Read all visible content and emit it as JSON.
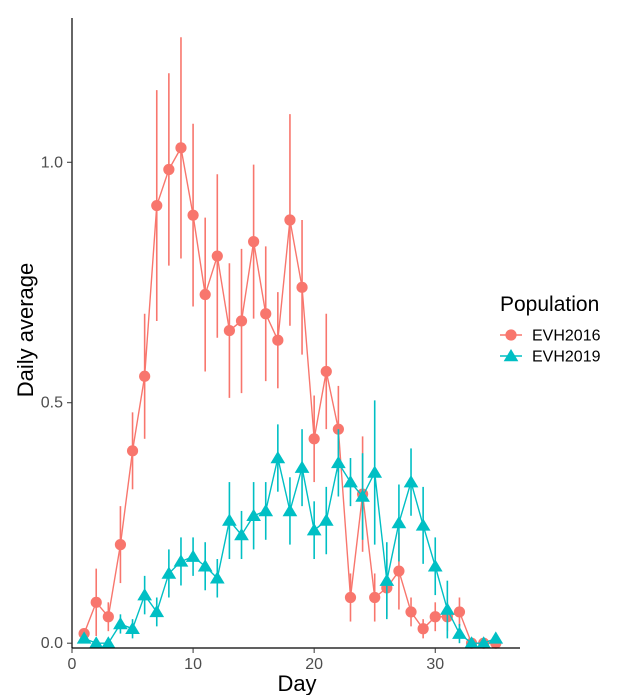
{
  "chart_data": {
    "type": "scatter",
    "title": "",
    "xlabel": "Day",
    "ylabel": "Daily average",
    "xlim": [
      0,
      37
    ],
    "ylim": [
      -0.01,
      1.3
    ],
    "xticks": [
      0,
      10,
      20,
      30
    ],
    "yticks": [
      0.0,
      0.5,
      1.0
    ],
    "ytick_labels": [
      "0.0",
      "0.5",
      "1.0"
    ],
    "grid": false,
    "legend": {
      "title": "Population",
      "placement": "right"
    },
    "series": [
      {
        "name": "EVH2016",
        "color": "#F8766D",
        "marker": "circle",
        "x": [
          1,
          2,
          3,
          4,
          5,
          6,
          7,
          8,
          9,
          10,
          11,
          12,
          13,
          14,
          15,
          16,
          17,
          18,
          19,
          20,
          21,
          22,
          23,
          24,
          25,
          26,
          27,
          28,
          29,
          30,
          31,
          32,
          33,
          34,
          35
        ],
        "y": [
          0.02,
          0.085,
          0.055,
          0.205,
          0.4,
          0.555,
          0.91,
          0.985,
          1.03,
          0.89,
          0.725,
          0.805,
          0.65,
          0.67,
          0.835,
          0.685,
          0.63,
          0.88,
          0.74,
          0.425,
          0.565,
          0.445,
          0.095,
          0.31,
          0.095,
          0.115,
          0.15,
          0.065,
          0.03,
          0.055,
          0.055,
          0.065,
          0.0,
          0.0,
          0.0
        ],
        "err": [
          0.01,
          0.07,
          0.03,
          0.08,
          0.08,
          0.13,
          0.24,
          0.2,
          0.23,
          0.19,
          0.16,
          0.17,
          0.14,
          0.15,
          0.16,
          0.14,
          0.1,
          0.22,
          0.14,
          0.09,
          0.12,
          0.09,
          0.05,
          0.12,
          0.05,
          0.06,
          0.08,
          0.03,
          0.02,
          0.03,
          0.03,
          0.03,
          0.0,
          0.0,
          0.0
        ]
      },
      {
        "name": "EVH2019",
        "color": "#00BFC4",
        "marker": "triangle",
        "x": [
          1,
          2,
          3,
          4,
          5,
          6,
          7,
          8,
          9,
          10,
          11,
          12,
          13,
          14,
          15,
          16,
          17,
          18,
          19,
          20,
          21,
          22,
          23,
          24,
          25,
          26,
          27,
          28,
          29,
          30,
          31,
          32,
          33,
          34,
          35
        ],
        "y": [
          0.01,
          0.0,
          0.0,
          0.04,
          0.03,
          0.1,
          0.065,
          0.145,
          0.17,
          0.18,
          0.16,
          0.135,
          0.255,
          0.225,
          0.265,
          0.275,
          0.385,
          0.275,
          0.365,
          0.235,
          0.255,
          0.375,
          0.335,
          0.305,
          0.355,
          0.13,
          0.25,
          0.335,
          0.245,
          0.16,
          0.07,
          0.02,
          0.0,
          0.0,
          0.01
        ],
        "err": [
          0.01,
          0.01,
          0.01,
          0.02,
          0.02,
          0.04,
          0.03,
          0.05,
          0.05,
          0.04,
          0.05,
          0.04,
          0.08,
          0.05,
          0.07,
          0.06,
          0.07,
          0.07,
          0.08,
          0.06,
          0.07,
          0.07,
          0.05,
          0.09,
          0.15,
          0.08,
          0.08,
          0.07,
          0.08,
          0.06,
          0.06,
          0.02,
          0.0,
          0.0,
          0.01
        ]
      }
    ]
  }
}
